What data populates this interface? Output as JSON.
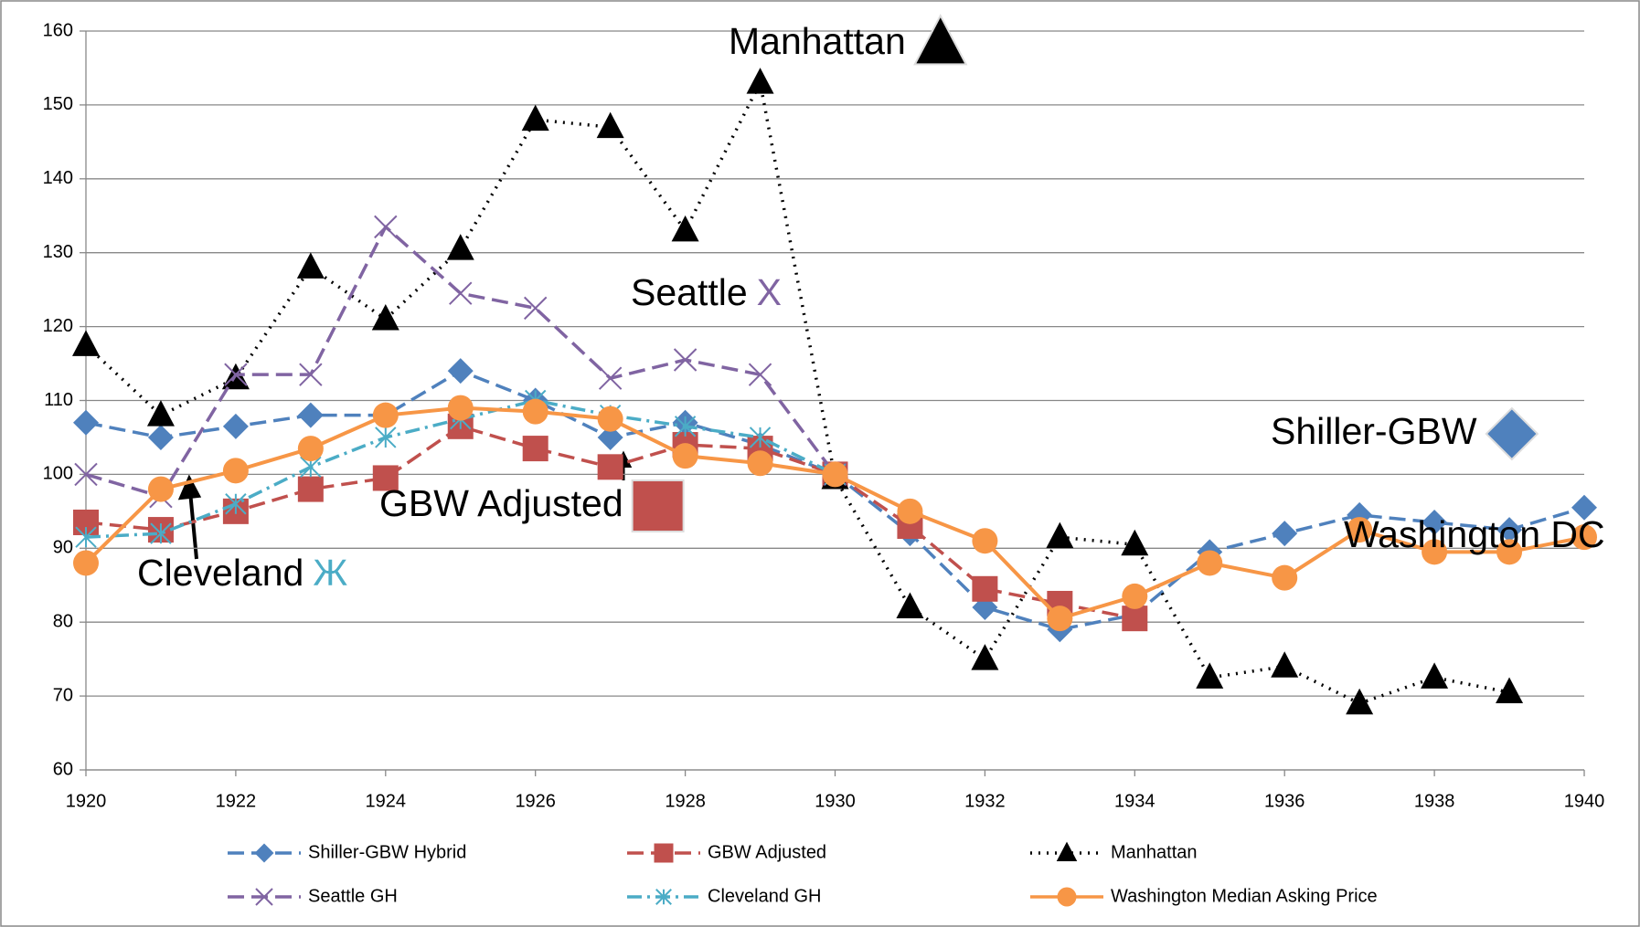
{
  "chart_data": {
    "type": "line",
    "x": [
      1920,
      1921,
      1922,
      1923,
      1924,
      1925,
      1926,
      1927,
      1928,
      1929,
      1930,
      1931,
      1932,
      1933,
      1934,
      1935,
      1936,
      1937,
      1938,
      1939,
      1940
    ],
    "xlim": [
      1920,
      1940
    ],
    "xticks": [
      1920,
      1922,
      1924,
      1926,
      1928,
      1930,
      1932,
      1934,
      1936,
      1938,
      1940
    ],
    "ylim": [
      60,
      160
    ],
    "yticks": [
      60,
      70,
      80,
      90,
      100,
      110,
      120,
      130,
      140,
      150,
      160
    ],
    "grid": true,
    "series": [
      {
        "name": "Shiller-GBW Hybrid",
        "color": "#4f81bd",
        "style": "dashed",
        "marker": "diamond",
        "values": [
          107,
          105,
          106.5,
          108,
          108,
          114,
          110,
          105,
          107,
          104,
          100,
          92,
          82,
          79,
          81,
          89.5,
          92,
          94.5,
          93.5,
          92.5,
          95.5
        ]
      },
      {
        "name": "GBW Adjusted",
        "color": "#c0504d",
        "style": "dashed",
        "marker": "square",
        "values": [
          93.5,
          92.5,
          95,
          98,
          99.5,
          106.5,
          103.5,
          101,
          104,
          103.5,
          100,
          93,
          84.5,
          82.5,
          80.5,
          null,
          null,
          null,
          null,
          null,
          null
        ]
      },
      {
        "name": "Manhattan",
        "color": "#000000",
        "style": "dotted",
        "marker": "triangle",
        "values": [
          117.5,
          108,
          113,
          128,
          121,
          130.5,
          148,
          147,
          133,
          153,
          99.5,
          82,
          75,
          91.5,
          90.5,
          72.5,
          74,
          69,
          72.5,
          70.5,
          null
        ]
      },
      {
        "name": "Seattle GH",
        "color": "#8064a2",
        "style": "dashed",
        "marker": "x",
        "values": [
          100,
          97,
          113.5,
          113.5,
          133.5,
          124.5,
          122.5,
          113,
          115.5,
          113.5,
          100,
          null,
          null,
          null,
          null,
          null,
          null,
          null,
          null,
          null,
          null
        ]
      },
      {
        "name": "Cleveland GH",
        "color": "#4bacc6",
        "style": "dashdot",
        "marker": "star",
        "values": [
          91.5,
          92,
          96,
          101,
          105,
          107.5,
          110,
          108,
          106.5,
          105,
          100,
          null,
          null,
          null,
          null,
          null,
          null,
          null,
          null,
          null,
          null
        ]
      },
      {
        "name": "Washington Median Asking Price",
        "color": "#f79646",
        "style": "solid",
        "marker": "circle",
        "values": [
          88,
          98,
          100.5,
          103.5,
          108,
          109,
          108.5,
          107.5,
          102.5,
          101.5,
          100,
          95,
          91,
          80.5,
          83.5,
          88,
          86,
          92.5,
          89.5,
          89.5,
          91.5
        ]
      }
    ],
    "annotations": [
      {
        "text": "Manhattan",
        "series": 2
      },
      {
        "text": "Seattle",
        "symbol": "X",
        "series": 3
      },
      {
        "text": "Shiller-GBW",
        "series": 0
      },
      {
        "text": "GBW Adjusted",
        "series": 1
      },
      {
        "text": "Cleveland",
        "symbol": "Ж",
        "series": 4
      },
      {
        "text": "Washington DC",
        "series": 5
      }
    ]
  }
}
